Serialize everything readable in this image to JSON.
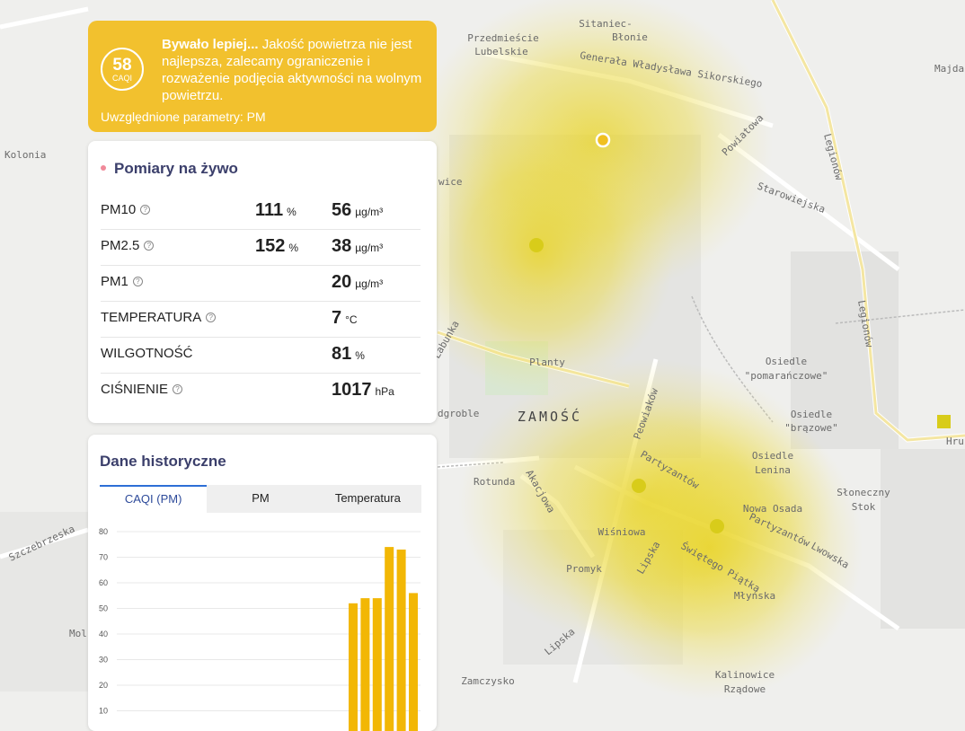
{
  "colors": {
    "accent": "#f2c12e",
    "title": "#3b3f6b",
    "bar": "#f2b705"
  },
  "map": {
    "city": "ZAMOŚĆ",
    "labels": [
      "Sitaniec-",
      "Błonie",
      "Przedmieście",
      "Lubelskie",
      "Majdan",
      "Generała Władysława Sikorskiego",
      "Powiatowa",
      "Starowiejska",
      "Legionów",
      "Kolonia",
      "wice",
      "Planty",
      "dgroble",
      "Rotunda",
      "Peowiaków",
      "Partyzantów",
      "Osiedle",
      "\"pomarańczowe\"",
      "\"brązowe\"",
      "Lenina",
      "Słoneczny",
      "Stok",
      "Nowa Osada",
      "Lwowska",
      "Wiśniowa",
      "Promyk",
      "Lipska",
      "Świętego Piątka",
      "Młyńska",
      "Kalinowice",
      "Rządowe",
      "Zamczysko",
      "Szczebrzeska",
      "Mol",
      "Hru",
      "Łabunka",
      "Akacjowa"
    ]
  },
  "caqi": {
    "value": "58",
    "unit": "CAQI",
    "headline": "Bywało lepiej...",
    "message": " Jakość powietrza nie jest najlepsza, zalecamy ograniczenie i rozważenie podjęcia aktywności na wolnym powietrzu.",
    "params": "Uwzględnione parametry: PM"
  },
  "live": {
    "title": "Pomiary na żywo",
    "rows": [
      {
        "name": "PM10",
        "percent": "111",
        "percent_unit": "%",
        "value": "56",
        "unit": "µg/m³"
      },
      {
        "name": "PM2.5",
        "percent": "152",
        "percent_unit": "%",
        "value": "38",
        "unit": "µg/m³"
      },
      {
        "name": "PM1",
        "value": "20",
        "unit": "µg/m³"
      },
      {
        "name": "TEMPERATURA",
        "value": "7",
        "unit": "°C"
      },
      {
        "name": "WILGOTNOŚĆ",
        "value": "81",
        "unit": "%"
      },
      {
        "name": "CIŚNIENIE",
        "value": "1017",
        "unit": "hPa"
      }
    ]
  },
  "history": {
    "title": "Dane historyczne",
    "tabs": [
      "CAQI (PM)",
      "PM",
      "Temperatura"
    ]
  },
  "chart_data": {
    "type": "bar",
    "y_ticks": [
      "80",
      "70",
      "60",
      "50",
      "40",
      "30",
      "20",
      "10"
    ],
    "ylim": [
      0,
      80
    ],
    "values": [
      52,
      54,
      54,
      74,
      73,
      56
    ],
    "grid": true
  }
}
